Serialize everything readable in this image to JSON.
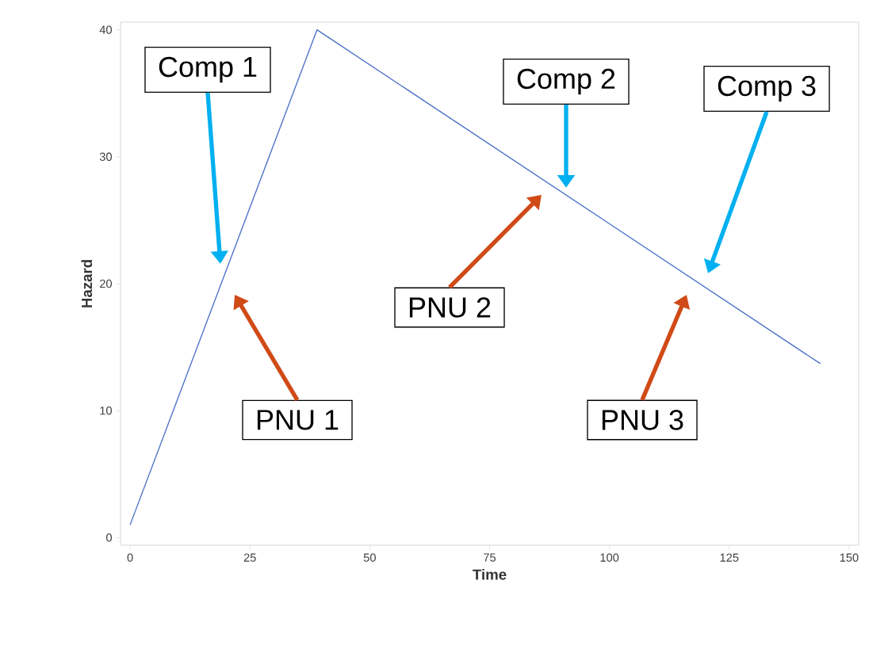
{
  "chart_data": {
    "type": "line",
    "xlabel": "Time",
    "ylabel": "Hazard",
    "x": [
      0,
      39,
      144
    ],
    "series": [
      {
        "color": "#4a6fc7",
        "values": [
          1,
          40,
          13.7
        ]
      }
    ],
    "xlim": [
      -2,
      152
    ],
    "ylim": [
      -0.6,
      40.6
    ],
    "xticks": [
      0,
      25,
      50,
      75,
      100,
      125,
      150
    ],
    "yticks": [
      0,
      10,
      20,
      30,
      40
    ],
    "grid": false,
    "marker": "none",
    "line_style": "solid",
    "annotations": [
      "Comp 1",
      "Comp 2",
      "Comp 3",
      "PNU 1",
      "PNU 2",
      "PNU 3"
    ]
  }
}
